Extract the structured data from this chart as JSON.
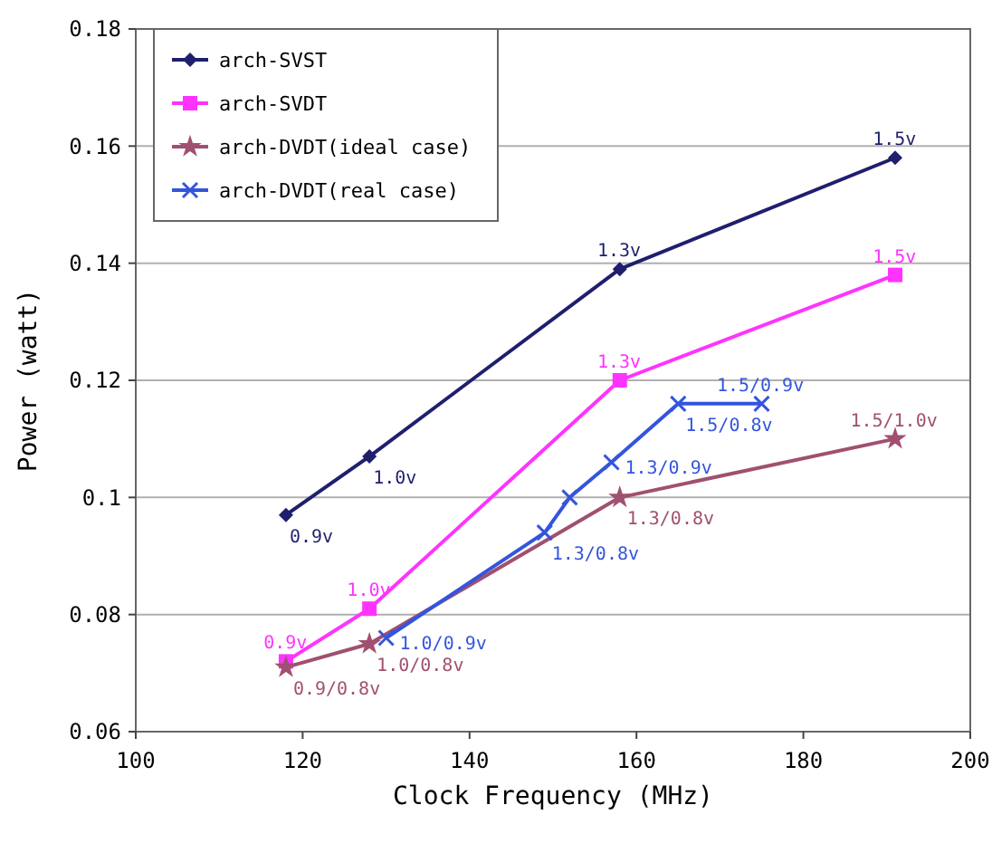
{
  "chart_data": {
    "type": "line",
    "xlabel": "Clock Frequency (MHz)",
    "ylabel": "Power (watt)",
    "xlim": [
      100,
      200
    ],
    "xticks": [
      100,
      120,
      140,
      160,
      180,
      200
    ],
    "ylim": [
      0.06,
      0.18
    ],
    "yticks": [
      {
        "value": 0.06,
        "label": "0.06"
      },
      {
        "value": 0.08,
        "label": "0.08"
      },
      {
        "value": 0.1,
        "label": "0.1"
      },
      {
        "value": 0.12,
        "label": "0.12"
      },
      {
        "value": 0.14,
        "label": "0.14"
      },
      {
        "value": 0.16,
        "label": "0.16"
      },
      {
        "value": 0.18,
        "label": "0.18"
      }
    ],
    "grid": "y",
    "legend": "top left",
    "line_style": "solid",
    "series": [
      {
        "name": "arch-SVST",
        "color": "#1f1f6e",
        "marker": "diamond",
        "x": [
          118,
          128,
          158,
          191
        ],
        "values": [
          0.097,
          0.107,
          0.139,
          0.158
        ]
      },
      {
        "name": "arch-SVDT",
        "color": "#ff33ff",
        "marker": "square",
        "x": [
          118,
          128,
          158,
          191
        ],
        "values": [
          0.072,
          0.081,
          0.12,
          0.138
        ]
      },
      {
        "name": "arch-DVDT(ideal case)",
        "color": "#a05070",
        "marker": "star",
        "x": [
          118,
          128,
          158,
          191
        ],
        "values": [
          0.071,
          0.075,
          0.1,
          0.11
        ]
      },
      {
        "name": "arch-DVDT(real case)",
        "color": "#3355dd",
        "marker": "cross",
        "x": [
          130,
          149,
          152,
          157,
          165,
          175
        ],
        "values": [
          0.076,
          0.094,
          0.1,
          0.106,
          0.116,
          0.116
        ]
      }
    ],
    "annotations": [
      {
        "text": "0.9v",
        "x": 118,
        "y": 0.097
      },
      {
        "text": "1.0v",
        "x": 128,
        "y": 0.107
      },
      {
        "text": "1.3v",
        "x": 158,
        "y": 0.139
      },
      {
        "text": "1.5v",
        "x": 191,
        "y": 0.158
      },
      {
        "text": "0.9v",
        "x": 118,
        "y": 0.072
      },
      {
        "text": "1.0v",
        "x": 128,
        "y": 0.081
      },
      {
        "text": "1.3v",
        "x": 158,
        "y": 0.12
      },
      {
        "text": "1.5v",
        "x": 191,
        "y": 0.138
      },
      {
        "text": "0.9/0.8v",
        "x": 118,
        "y": 0.071
      },
      {
        "text": "1.0/0.8v",
        "x": 128,
        "y": 0.075
      },
      {
        "text": "1.3/0.8v",
        "x": 158,
        "y": 0.1
      },
      {
        "text": "1.5/1.0v",
        "x": 191,
        "y": 0.11
      },
      {
        "text": "1.0/0.9v",
        "x": 130,
        "y": 0.076
      },
      {
        "text": "1.3/0.8v",
        "x": 149,
        "y": 0.094
      },
      {
        "text": "1.3/0.9v",
        "x": 157,
        "y": 0.106
      },
      {
        "text": "1.5/0.8v",
        "x": 165,
        "y": 0.116
      },
      {
        "text": "1.5/0.9v",
        "x": 175,
        "y": 0.116
      }
    ]
  }
}
